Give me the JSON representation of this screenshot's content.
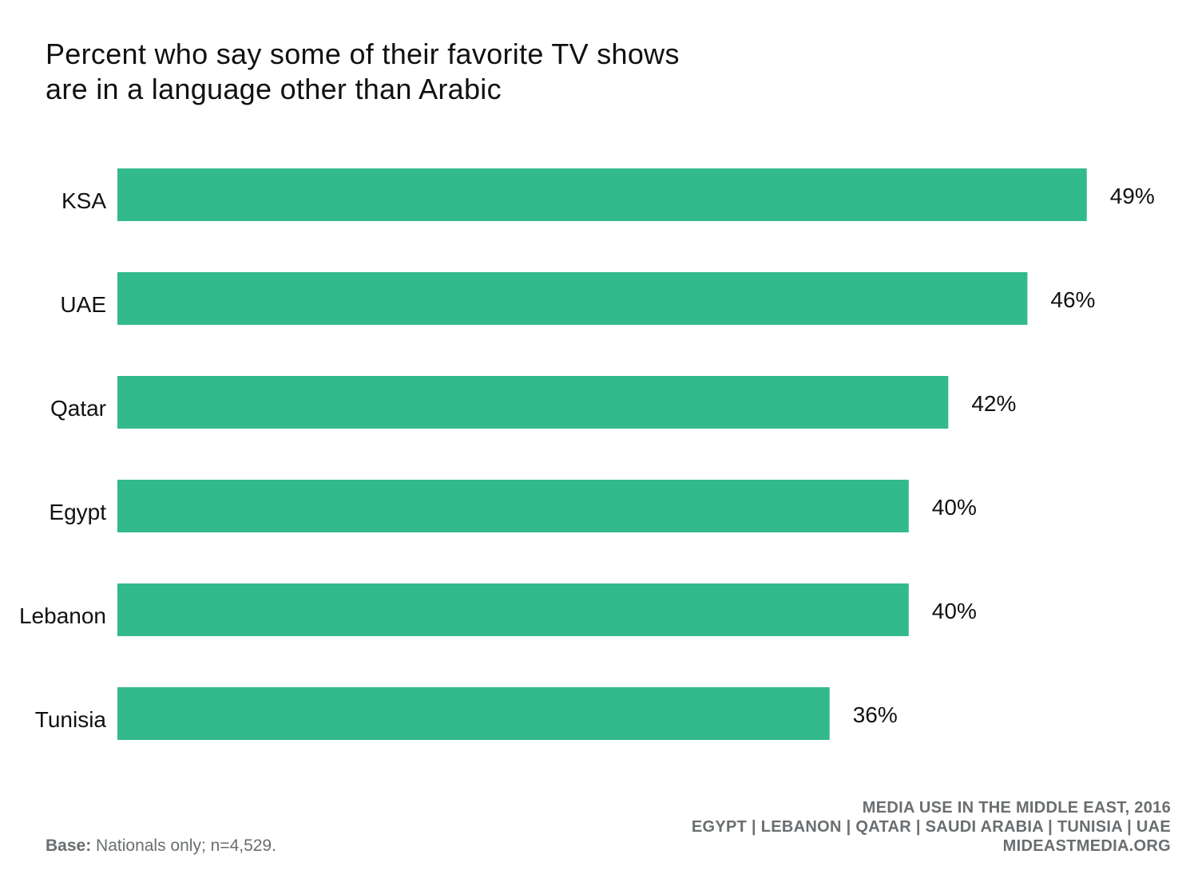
{
  "title_lines": [
    "Percent who say some of their favorite TV shows",
    "are in a language other than Arabic"
  ],
  "chart_data": {
    "type": "bar",
    "orientation": "horizontal",
    "title": "Percent who say some of their favorite TV shows are in a language other than Arabic",
    "categories": [
      "KSA",
      "UAE",
      "Qatar",
      "Egypt",
      "Lebanon",
      "Tunisia"
    ],
    "values": [
      49,
      46,
      42,
      40,
      40,
      36
    ],
    "value_labels": [
      "49%",
      "46%",
      "42%",
      "40%",
      "40%",
      "36%"
    ],
    "unit": "%",
    "xlim": [
      0,
      60
    ],
    "grid": false,
    "legend": "none",
    "bar_color": "#33ba8c"
  },
  "footer": {
    "base_label": "Base:",
    "base_text": "Nationals only; n=4,529.",
    "source_lines": [
      "MEDIA USE IN THE MIDDLE EAST, 2016",
      "EGYPT | LEBANON | QATAR | SAUDI ARABIA | TUNISIA | UAE",
      "MIDEASTMEDIA.ORG"
    ]
  },
  "colors": {
    "bar": "#33ba8c",
    "text": "#111111",
    "footer_text": "#6a6e70",
    "background": "#ffffff"
  }
}
